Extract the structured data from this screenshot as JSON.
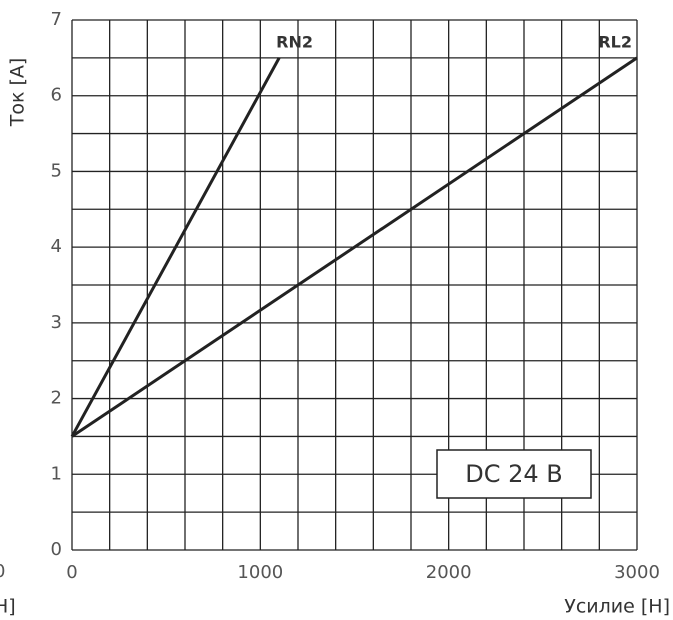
{
  "chart_data": {
    "type": "line",
    "xlabel": "Усилие [Н]",
    "ylabel": "Ток [А]",
    "series": [
      {
        "name": "RN2",
        "color": "#222222",
        "x": [
          0,
          1100
        ],
        "values": [
          1.5,
          6.5
        ]
      },
      {
        "name": "RL2",
        "color": "#222222",
        "x": [
          0,
          3000
        ],
        "values": [
          1.5,
          6.5
        ]
      }
    ],
    "xlim": [
      0,
      3000
    ],
    "xticks": [
      0,
      1000,
      2000,
      3000
    ],
    "x_minor_ticks": [
      200,
      400,
      600,
      800,
      1200,
      1400,
      1600,
      1800,
      2200,
      2400,
      2600,
      2800
    ],
    "ylim": [
      0,
      7
    ],
    "yticks": [
      0,
      1,
      2,
      3,
      4,
      5,
      6,
      7
    ],
    "y_minor_ticks": [
      0.5,
      1.5,
      2.5,
      3.5,
      4.5,
      5.5,
      6.5
    ],
    "grid": true,
    "annotation": "DC 24 В",
    "clipped_texts": [
      "0",
      "Н]"
    ]
  }
}
